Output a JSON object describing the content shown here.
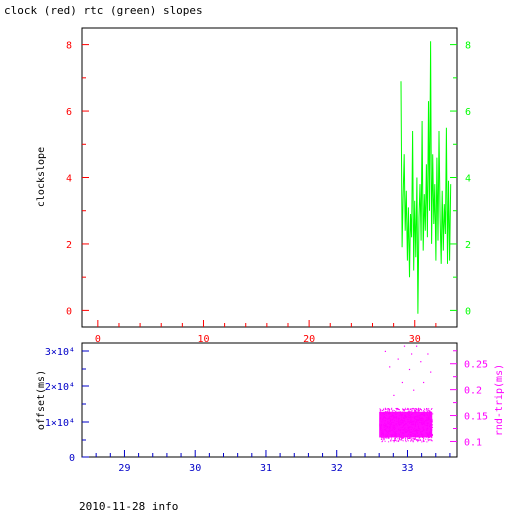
{
  "title": "clock (red) rtc (green) slopes",
  "footer": "2010-11-28 info",
  "colors": {
    "frame": "#000000",
    "clock": "#ff0000",
    "rtc": "#00ff00",
    "offset": "#0000c8",
    "rtt": "#ff00ff"
  },
  "chart_data": [
    {
      "type": "line",
      "panel": "top",
      "ylabel": "clockslope",
      "x_ticks": [
        "0",
        "10",
        "20",
        "30"
      ],
      "xlim": [
        -1.5,
        34
      ],
      "ylim": [
        -0.5,
        8.5
      ],
      "y_ticks_left": [
        "0",
        "2",
        "4",
        "6",
        "8"
      ],
      "y_ticks_right": [
        "0",
        "2",
        "4",
        "6",
        "8"
      ],
      "series": [
        {
          "color": "green",
          "x": [
            28.7,
            28.8,
            28.9,
            29.0,
            29.1,
            29.2,
            29.3,
            29.4,
            29.5,
            29.6,
            29.7,
            29.8,
            29.9,
            30.0,
            30.1,
            30.2,
            30.3,
            30.4,
            30.5,
            30.6,
            30.7,
            30.8,
            30.9,
            31.0,
            31.1,
            31.2,
            31.3,
            31.4,
            31.5,
            31.6,
            31.7,
            31.8,
            31.9,
            32.0,
            32.1,
            32.2,
            32.3,
            32.4,
            32.5,
            32.6,
            32.7,
            32.8,
            32.9,
            33.0,
            33.1,
            33.2,
            33.3,
            33.4
          ],
          "values": [
            6.9,
            1.9,
            3.4,
            4.7,
            2.4,
            3.6,
            1.5,
            3.1,
            1.0,
            2.9,
            2.2,
            5.4,
            1.2,
            3.3,
            1.6,
            4.0,
            -0.1,
            2.8,
            3.8,
            2.1,
            5.7,
            1.8,
            3.5,
            2.4,
            4.4,
            2.2,
            6.3,
            3.0,
            8.1,
            2.0,
            4.7,
            2.6,
            3.8,
            1.5,
            4.6,
            2.1,
            5.4,
            2.8,
            1.4,
            3.6,
            1.8,
            3.2,
            2.3,
            5.5,
            1.4,
            3.9,
            1.5,
            3.8
          ]
        }
      ]
    },
    {
      "type": "scatter",
      "panel": "bottom",
      "ylabel": "offset(ms)",
      "y2label": "rnd-trip(ms)",
      "x_ticks": [
        "29",
        "30",
        "31",
        "32",
        "33"
      ],
      "xlim": [
        28.4,
        33.7
      ],
      "y_ticks_left": [
        "0",
        "1×10⁴",
        "2×10⁴",
        "3×10⁴"
      ],
      "y_ticks_right": [
        "0.1",
        "0.15",
        "0.2",
        "0.25"
      ],
      "y2lim": [
        0.07,
        0.29
      ],
      "series": [
        {
          "color": "magenta",
          "x_range": [
            32.6,
            33.35
          ],
          "band": [
            0.1,
            0.165
          ],
          "outliers": [
            [
              32.68,
              0.275
            ],
            [
              32.74,
              0.245
            ],
            [
              32.8,
              0.19
            ],
            [
              32.86,
              0.26
            ],
            [
              32.95,
              0.285
            ],
            [
              33.02,
              0.24
            ],
            [
              33.08,
              0.2
            ],
            [
              33.12,
              0.285
            ],
            [
              33.18,
              0.255
            ],
            [
              33.22,
              0.215
            ],
            [
              33.28,
              0.27
            ],
            [
              33.32,
              0.235
            ],
            [
              32.92,
              0.215
            ],
            [
              33.05,
              0.27
            ]
          ]
        }
      ]
    }
  ]
}
